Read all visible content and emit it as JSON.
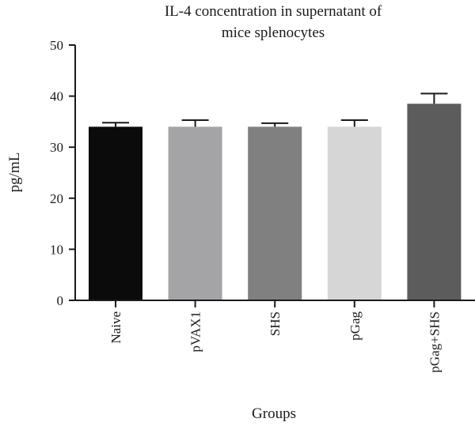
{
  "chart_data": {
    "type": "bar",
    "title_lines": [
      "IL-4 concentration in supernatant of",
      "mice splenocytes"
    ],
    "xlabel": "Groups",
    "ylabel": "pg/mL",
    "ylim": [
      0,
      50
    ],
    "yticks": [
      0,
      10,
      20,
      30,
      40,
      50
    ],
    "grid": false,
    "legend": "none",
    "categories": [
      "Naive",
      "pVAX1",
      "SHS",
      "pGag",
      "pGag+SHS"
    ],
    "values": [
      34.0,
      34.0,
      34.0,
      34.0,
      38.5
    ],
    "errors": [
      0.8,
      1.3,
      0.7,
      1.3,
      2.0
    ],
    "colors": [
      "#0b0b0b",
      "#a4a4a6",
      "#808080",
      "#d6d6d6",
      "#5c5c5c"
    ]
  }
}
